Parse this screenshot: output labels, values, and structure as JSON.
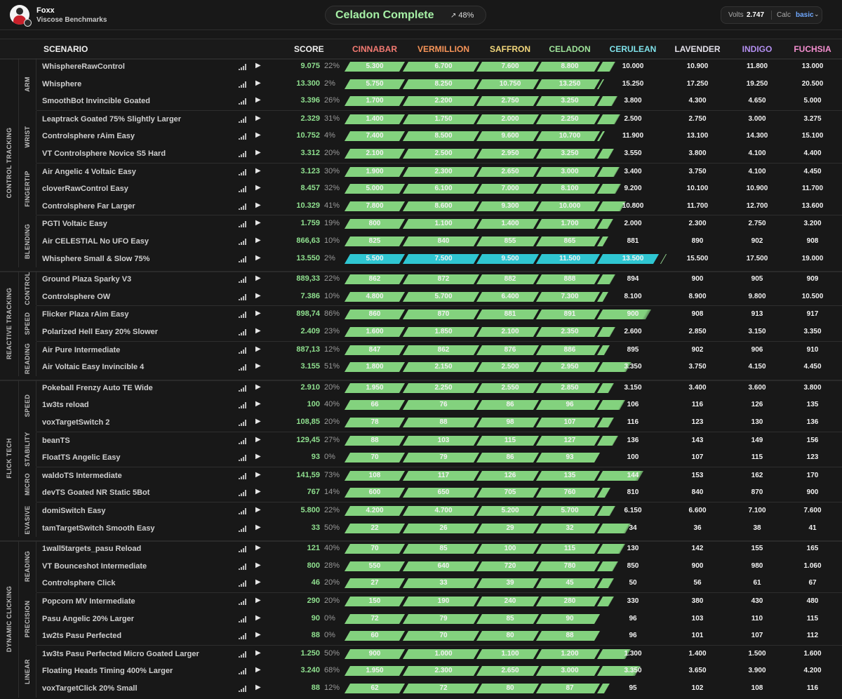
{
  "user": {
    "name": "Foxx",
    "subtitle": "Viscose Benchmarks"
  },
  "rank_summary": {
    "title": "Celadon Complete",
    "percent": "48%",
    "trend_icon": "trending-up-icon"
  },
  "calc": {
    "volts_label": "Volts",
    "volts_value": "2.747",
    "calc_label": "Calc",
    "calc_value": "basic"
  },
  "columns": {
    "scenario": "SCENARIO",
    "score": "SCORE",
    "ranks": [
      {
        "name": "CINNABAR",
        "color": "#f37a72"
      },
      {
        "name": "VERMILLION",
        "color": "#f79458"
      },
      {
        "name": "SAFFRON",
        "color": "#f2d77b"
      },
      {
        "name": "CELADON",
        "color": "#9fe59b"
      },
      {
        "name": "CERULEAN",
        "color": "#7fe2ea"
      },
      {
        "name": "LAVENDER",
        "color": "#e3e0ea"
      },
      {
        "name": "INDIGO",
        "color": "#b38ff0"
      },
      {
        "name": "FUCHSIA",
        "color": "#f58fd0"
      }
    ]
  },
  "groups": [
    {
      "label": "CONTROL TRACKING",
      "subgroups": [
        {
          "label": "ARM",
          "rows": [
            {
              "name": "WhisphereRawControl",
              "score": "9.075",
              "pct": "22%",
              "fill": 4.22,
              "th": [
                "5.300",
                "6.700",
                "7.600",
                "8.800",
                "10.000",
                "10.900",
                "11.800",
                "13.000"
              ]
            },
            {
              "name": "Whisphere",
              "score": "13.300",
              "pct": "2%",
              "fill": 4.02,
              "th": [
                "5.750",
                "8.250",
                "10.750",
                "13.250",
                "15.250",
                "17.250",
                "19.250",
                "20.500"
              ]
            },
            {
              "name": "SmoothBot Invincible Goated",
              "score": "3.396",
              "pct": "26%",
              "fill": 4.26,
              "th": [
                "1.700",
                "2.200",
                "2.750",
                "3.250",
                "3.800",
                "4.300",
                "4.650",
                "5.000"
              ]
            }
          ]
        },
        {
          "label": "WRIST",
          "rows": [
            {
              "name": "Leaptrack Goated 75% Slightly Larger",
              "score": "2.329",
              "pct": "31%",
              "fill": 4.31,
              "th": [
                "1.400",
                "1.750",
                "2.000",
                "2.250",
                "2.500",
                "2.750",
                "3.000",
                "3.275"
              ]
            },
            {
              "name": "Controlsphere rAim Easy",
              "score": "10.752",
              "pct": "4%",
              "fill": 4.04,
              "th": [
                "7.400",
                "8.500",
                "9.600",
                "10.700",
                "11.900",
                "13.100",
                "14.300",
                "15.100"
              ]
            },
            {
              "name": "VT Controlsphere Novice S5 Hard",
              "score": "3.312",
              "pct": "20%",
              "fill": 4.2,
              "th": [
                "2.100",
                "2.500",
                "2.950",
                "3.250",
                "3.550",
                "3.800",
                "4.100",
                "4.400"
              ]
            }
          ]
        },
        {
          "label": "FINGERTIP",
          "rows": [
            {
              "name": "Air Angelic 4 Voltaic Easy",
              "score": "3.123",
              "pct": "30%",
              "fill": 4.3,
              "th": [
                "1.900",
                "2.300",
                "2.650",
                "3.000",
                "3.400",
                "3.750",
                "4.100",
                "4.450"
              ]
            },
            {
              "name": "cloverRawControl Easy",
              "score": "8.457",
              "pct": "32%",
              "fill": 4.32,
              "th": [
                "5.000",
                "6.100",
                "7.000",
                "8.100",
                "9.200",
                "10.100",
                "10.900",
                "11.700"
              ]
            },
            {
              "name": "Controlsphere Far Larger",
              "score": "10.329",
              "pct": "41%",
              "fill": 4.41,
              "th": [
                "7.800",
                "8.600",
                "9.300",
                "10.000",
                "10.800",
                "11.700",
                "12.700",
                "13.600"
              ]
            }
          ]
        },
        {
          "label": "BLENDING",
          "rows": [
            {
              "name": "PGTI Voltaic Easy",
              "score": "1.759",
              "pct": "19%",
              "fill": 4.19,
              "th": [
                "800",
                "1.100",
                "1.400",
                "1.700",
                "2.000",
                "2.300",
                "2.750",
                "3.200"
              ]
            },
            {
              "name": "Air CELESTIAL No UFO Easy",
              "score": "866,63",
              "pct": "10%",
              "fill": 4.1,
              "th": [
                "825",
                "840",
                "855",
                "865",
                "881",
                "890",
                "902",
                "908"
              ]
            },
            {
              "name": "Whisphere Small & Slow 75%",
              "score": "13.550",
              "pct": "2%",
              "fill": 5.02,
              "th": [
                "5.500",
                "7.500",
                "9.500",
                "11.500",
                "13.500",
                "15.500",
                "17.500",
                "19.000"
              ],
              "highlight": true
            }
          ]
        }
      ]
    },
    {
      "label": "REACTIVE TRACKING",
      "subgroups": [
        {
          "label": "CONTROL",
          "rows": [
            {
              "name": "Ground Plaza Sparky V3",
              "score": "889,33",
              "pct": "22%",
              "fill": 4.22,
              "th": [
                "862",
                "872",
                "882",
                "888",
                "894",
                "900",
                "905",
                "909"
              ]
            },
            {
              "name": "Controlsphere OW",
              "score": "7.386",
              "pct": "10%",
              "fill": 4.1,
              "th": [
                "4.800",
                "5.700",
                "6.400",
                "7.300",
                "8.100",
                "8.900",
                "9.800",
                "10.500"
              ]
            }
          ]
        },
        {
          "label": "SPEED",
          "rows": [
            {
              "name": "Flicker Plaza rAim Easy",
              "score": "898,74",
              "pct": "86%",
              "fill": 4.86,
              "th": [
                "860",
                "870",
                "881",
                "891",
                "900",
                "908",
                "913",
                "917"
              ]
            },
            {
              "name": "Polarized Hell Easy 20% Slower",
              "score": "2.409",
              "pct": "23%",
              "fill": 4.23,
              "th": [
                "1.600",
                "1.850",
                "2.100",
                "2.350",
                "2.600",
                "2.850",
                "3.150",
                "3.350"
              ]
            }
          ]
        },
        {
          "label": "READING",
          "rows": [
            {
              "name": "Air Pure Intermediate",
              "score": "887,13",
              "pct": "12%",
              "fill": 4.12,
              "th": [
                "847",
                "862",
                "876",
                "886",
                "895",
                "902",
                "906",
                "910"
              ]
            },
            {
              "name": "Air Voltaic Easy Invincible 4",
              "score": "3.155",
              "pct": "51%",
              "fill": 4.51,
              "th": [
                "1.800",
                "2.150",
                "2.500",
                "2.950",
                "3.350",
                "3.750",
                "4.150",
                "4.450"
              ]
            }
          ]
        }
      ]
    },
    {
      "label": "FLICK TECH",
      "subgroups": [
        {
          "label": "SPEED",
          "rows": [
            {
              "name": "Pokeball Frenzy Auto TE Wide",
              "score": "2.910",
              "pct": "20%",
              "fill": 4.2,
              "th": [
                "1.950",
                "2.250",
                "2.550",
                "2.850",
                "3.150",
                "3.400",
                "3.600",
                "3.800"
              ]
            },
            {
              "name": "1w3ts reload",
              "score": "100",
              "pct": "40%",
              "fill": 4.4,
              "th": [
                "66",
                "76",
                "86",
                "96",
                "106",
                "116",
                "126",
                "135"
              ]
            },
            {
              "name": "voxTargetSwitch 2",
              "score": "108,85",
              "pct": "20%",
              "fill": 4.2,
              "th": [
                "78",
                "88",
                "98",
                "107",
                "116",
                "123",
                "130",
                "136"
              ]
            }
          ]
        },
        {
          "label": "STABILITY",
          "rows": [
            {
              "name": "beanTS",
              "score": "129,45",
              "pct": "27%",
              "fill": 4.27,
              "th": [
                "88",
                "103",
                "115",
                "127",
                "136",
                "143",
                "149",
                "156"
              ]
            },
            {
              "name": "FloatTS Angelic Easy",
              "score": "93",
              "pct": "0%",
              "fill": 4.0,
              "th": [
                "70",
                "79",
                "86",
                "93",
                "100",
                "107",
                "115",
                "123"
              ]
            }
          ]
        },
        {
          "label": "MICRO",
          "rows": [
            {
              "name": "waldoTS Intermediate",
              "score": "141,59",
              "pct": "73%",
              "fill": 4.73,
              "th": [
                "108",
                "117",
                "126",
                "135",
                "144",
                "153",
                "162",
                "170"
              ]
            },
            {
              "name": "devTS Goated NR Static 5Bot",
              "score": "767",
              "pct": "14%",
              "fill": 4.14,
              "th": [
                "600",
                "650",
                "705",
                "760",
                "810",
                "840",
                "870",
                "900"
              ]
            }
          ]
        },
        {
          "label": "EVASIVE",
          "rows": [
            {
              "name": "domiSwitch Easy",
              "score": "5.800",
              "pct": "22%",
              "fill": 4.22,
              "th": [
                "4.200",
                "4.700",
                "5.200",
                "5.700",
                "6.150",
                "6.600",
                "7.100",
                "7.600"
              ]
            },
            {
              "name": "tamTargetSwitch Smooth Easy",
              "score": "33",
              "pct": "50%",
              "fill": 4.5,
              "th": [
                "22",
                "26",
                "29",
                "32",
                "34",
                "36",
                "38",
                "41"
              ]
            }
          ]
        }
      ]
    },
    {
      "label": "DYNAMIC CLICKING",
      "subgroups": [
        {
          "label": "READING",
          "rows": [
            {
              "name": "1wall5targets_pasu Reload",
              "score": "121",
              "pct": "40%",
              "fill": 4.4,
              "th": [
                "70",
                "85",
                "100",
                "115",
                "130",
                "142",
                "155",
                "165"
              ]
            },
            {
              "name": "VT Bounceshot Intermediate",
              "score": "800",
              "pct": "28%",
              "fill": 4.28,
              "th": [
                "550",
                "640",
                "720",
                "780",
                "850",
                "900",
                "980",
                "1.060"
              ]
            },
            {
              "name": "Controlsphere Click",
              "score": "46",
              "pct": "20%",
              "fill": 4.2,
              "th": [
                "27",
                "33",
                "39",
                "45",
                "50",
                "56",
                "61",
                "67"
              ]
            }
          ]
        },
        {
          "label": "PRECISION",
          "rows": [
            {
              "name": "Popcorn MV Intermediate",
              "score": "290",
              "pct": "20%",
              "fill": 4.2,
              "th": [
                "150",
                "190",
                "240",
                "280",
                "330",
                "380",
                "430",
                "480"
              ]
            },
            {
              "name": "Pasu Angelic 20% Larger",
              "score": "90",
              "pct": "0%",
              "fill": 4.0,
              "th": [
                "72",
                "79",
                "85",
                "90",
                "96",
                "103",
                "110",
                "115"
              ]
            },
            {
              "name": "1w2ts Pasu Perfected",
              "score": "88",
              "pct": "0%",
              "fill": 4.0,
              "th": [
                "60",
                "70",
                "80",
                "88",
                "96",
                "101",
                "107",
                "112"
              ]
            }
          ]
        },
        {
          "label": "LINEAR",
          "rows": [
            {
              "name": "1w3ts Pasu Perfected Micro Goated Larger",
              "score": "1.250",
              "pct": "50%",
              "fill": 4.5,
              "th": [
                "900",
                "1.000",
                "1.100",
                "1.200",
                "1.300",
                "1.400",
                "1.500",
                "1.600"
              ]
            },
            {
              "name": "Floating Heads Timing 400% Larger",
              "score": "3.240",
              "pct": "68%",
              "fill": 4.68,
              "th": [
                "1.950",
                "2.300",
                "2.650",
                "3.000",
                "3.350",
                "3.650",
                "3.900",
                "4.200"
              ]
            },
            {
              "name": "voxTargetClick 20% Small",
              "score": "88",
              "pct": "12%",
              "fill": 4.12,
              "th": [
                "62",
                "72",
                "80",
                "87",
                "95",
                "102",
                "108",
                "116"
              ]
            }
          ]
        }
      ]
    }
  ]
}
